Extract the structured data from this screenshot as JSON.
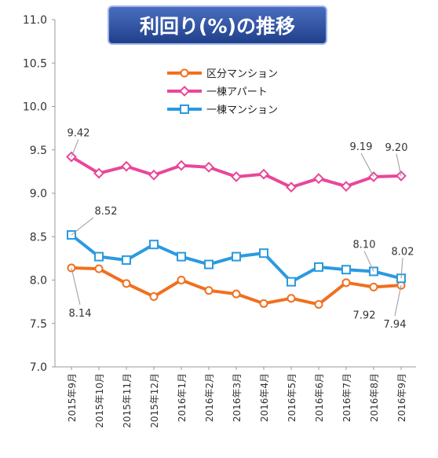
{
  "chart_data": {
    "type": "line",
    "title": "利回り(%)の推移",
    "xlabel": "",
    "ylabel": "",
    "ylim": [
      7.0,
      11.0
    ],
    "yticks": [
      "7.0",
      "7.5",
      "8.0",
      "8.5",
      "9.0",
      "9.5",
      "10.0",
      "10.5",
      "11.0"
    ],
    "grid": false,
    "legend_position": "top-center",
    "categories": [
      "2015年9月",
      "2015年10月",
      "2015年11月",
      "2015年12月",
      "2016年1月",
      "2016年2月",
      "2016年3月",
      "2016年4月",
      "2016年5月",
      "2016年6月",
      "2016年7月",
      "2016年8月",
      "2016年9月"
    ],
    "series": [
      {
        "name": "区分マンション",
        "color": "#f07020",
        "marker": "circle",
        "values": [
          8.14,
          8.13,
          7.96,
          7.81,
          8.0,
          7.88,
          7.84,
          7.73,
          7.79,
          7.72,
          7.97,
          7.92,
          7.94
        ]
      },
      {
        "name": "一棟アパート",
        "color": "#e8479a",
        "marker": "diamond",
        "values": [
          9.42,
          9.23,
          9.31,
          9.21,
          9.32,
          9.3,
          9.19,
          9.22,
          9.07,
          9.17,
          9.08,
          9.19,
          9.2
        ]
      },
      {
        "name": "一棟マンション",
        "color": "#2a9ae0",
        "marker": "square",
        "values": [
          8.52,
          8.27,
          8.23,
          8.41,
          8.27,
          8.18,
          8.27,
          8.31,
          7.98,
          8.15,
          8.12,
          8.1,
          8.02
        ]
      }
    ],
    "annotations": [
      {
        "text": "9.42"
      },
      {
        "text": "8.52"
      },
      {
        "text": "8.14"
      },
      {
        "text": "9.19"
      },
      {
        "text": "9.20"
      },
      {
        "text": "8.10"
      },
      {
        "text": "8.02"
      },
      {
        "text": "7.92"
      },
      {
        "text": "7.94"
      }
    ]
  }
}
